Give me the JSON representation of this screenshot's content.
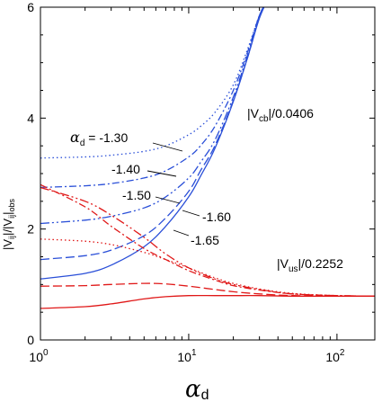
{
  "chart_data": {
    "type": "line",
    "x_scale": "log",
    "xlim": [
      1,
      180
    ],
    "ylim": [
      0,
      6
    ],
    "x_ticks": [
      {
        "value": 1,
        "base": "10",
        "exp": "0"
      },
      {
        "value": 10,
        "base": "10",
        "exp": "1"
      },
      {
        "value": 100,
        "base": "10",
        "exp": "2"
      }
    ],
    "y_ticks": [
      0,
      2,
      4,
      6
    ],
    "xlabel": {
      "symbol": "α",
      "sub": "d"
    },
    "ylabel": {
      "a": "|V",
      "a_sub": "ij",
      "b": "|/|V",
      "b_sub": "ij",
      "c": "|",
      "c_sub": "obs"
    },
    "colors": {
      "blue": "#2a4fd8",
      "red": "#e01818"
    },
    "annotations": {
      "vcb": {
        "pre": "|V",
        "sub": "cb",
        "post": "|/0.0406"
      },
      "vus": {
        "pre": "|V",
        "sub": "us",
        "post": "|/0.2252"
      },
      "alpha_sym": "α",
      "alpha_sub": "d",
      "alpha_eq": " = -1.30",
      "labels": [
        "-1.40",
        "-1.50",
        "-1.60",
        "-1.65"
      ]
    },
    "series": [
      {
        "group": "Vcb",
        "color": "blue",
        "dash": "1.5,3",
        "x": [
          1,
          2,
          3,
          5,
          7,
          10,
          12,
          15,
          20,
          25,
          30,
          35
        ],
        "y": [
          3.28,
          3.3,
          3.33,
          3.4,
          3.5,
          3.7,
          3.85,
          4.1,
          4.6,
          5.25,
          5.85,
          6.2
        ]
      },
      {
        "group": "Vcb",
        "color": "blue",
        "dash": "8,3,2,3",
        "x": [
          1,
          2,
          3,
          5,
          7,
          10,
          12,
          15,
          20,
          25,
          30,
          35
        ],
        "y": [
          2.75,
          2.78,
          2.82,
          2.92,
          3.05,
          3.3,
          3.5,
          3.85,
          4.5,
          5.2,
          5.85,
          6.2
        ]
      },
      {
        "group": "Vcb",
        "color": "blue",
        "dash": "10,3,2,3,2,3",
        "x": [
          1,
          2,
          3,
          5,
          7,
          10,
          12,
          15,
          20,
          25,
          30,
          35
        ],
        "y": [
          2.1,
          2.16,
          2.23,
          2.38,
          2.58,
          2.92,
          3.2,
          3.6,
          4.38,
          5.15,
          5.85,
          6.2
        ]
      },
      {
        "group": "Vcb",
        "color": "blue",
        "dash": "10,4",
        "x": [
          1,
          2,
          3,
          5,
          7,
          10,
          12,
          15,
          20,
          25,
          30,
          35
        ],
        "y": [
          1.45,
          1.52,
          1.62,
          1.88,
          2.2,
          2.68,
          3.05,
          3.5,
          4.32,
          5.1,
          5.82,
          6.2
        ]
      },
      {
        "group": "Vcb",
        "color": "blue",
        "dash": "",
        "x": [
          1,
          2,
          3,
          5,
          7,
          10,
          12,
          15,
          20,
          25,
          30,
          35
        ],
        "y": [
          1.1,
          1.2,
          1.35,
          1.68,
          2.05,
          2.58,
          2.95,
          3.45,
          4.3,
          5.1,
          5.8,
          6.2
        ]
      },
      {
        "group": "Vus",
        "color": "red",
        "dash": "1.5,3",
        "x": [
          1,
          2,
          3,
          5,
          7,
          10,
          15,
          20,
          30,
          50,
          100,
          180
        ],
        "y": [
          1.82,
          1.78,
          1.72,
          1.58,
          1.45,
          1.3,
          1.12,
          1.02,
          0.92,
          0.84,
          0.8,
          0.79
        ]
      },
      {
        "group": "Vus",
        "color": "red",
        "dash": "8,3,2,3",
        "x": [
          1,
          2,
          3,
          5,
          7,
          10,
          15,
          20,
          30,
          50,
          100,
          180
        ],
        "y": [
          2.8,
          2.4,
          2.05,
          1.65,
          1.45,
          1.25,
          1.08,
          0.98,
          0.9,
          0.83,
          0.8,
          0.79
        ]
      },
      {
        "group": "Vus",
        "color": "red",
        "dash": "10,3,2,3,2,3",
        "x": [
          1,
          2,
          3,
          5,
          7,
          10,
          15,
          20,
          30,
          50,
          100,
          180
        ],
        "y": [
          2.75,
          2.5,
          2.25,
          1.85,
          1.55,
          1.3,
          1.1,
          1.0,
          0.91,
          0.83,
          0.8,
          0.79
        ]
      },
      {
        "group": "Vus",
        "color": "red",
        "dash": "10,4",
        "x": [
          1,
          2,
          3,
          5,
          7,
          10,
          15,
          20,
          30,
          50,
          100,
          180
        ],
        "y": [
          0.97,
          0.98,
          1.0,
          1.02,
          1.01,
          0.97,
          0.91,
          0.87,
          0.83,
          0.8,
          0.79,
          0.79
        ]
      },
      {
        "group": "Vus",
        "color": "red",
        "dash": "",
        "x": [
          1,
          2,
          3,
          5,
          7,
          10,
          15,
          20,
          30,
          50,
          100,
          180
        ],
        "y": [
          0.57,
          0.6,
          0.65,
          0.74,
          0.78,
          0.8,
          0.8,
          0.8,
          0.8,
          0.79,
          0.79,
          0.79
        ]
      }
    ]
  }
}
